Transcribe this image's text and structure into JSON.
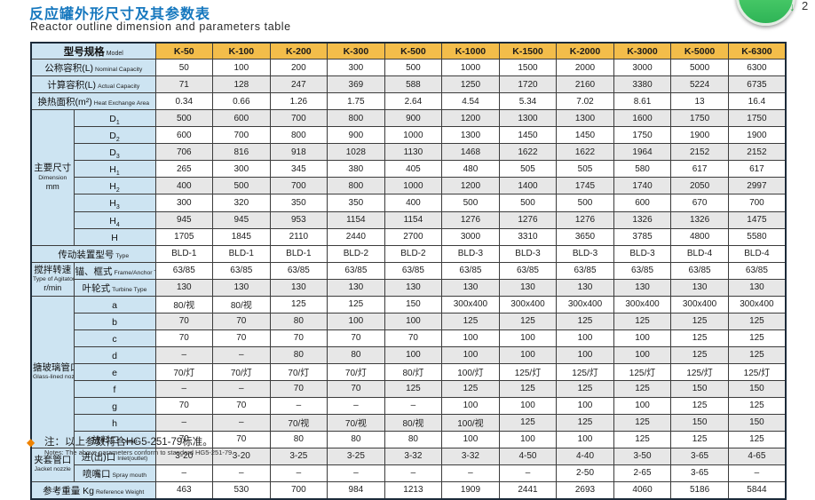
{
  "page": {
    "title_zh": "反应罐外形尺寸及其参数表",
    "title_en": "Reactor outline dimension and parameters table"
  },
  "scroll_widget": {
    "arrow": "↓",
    "count": "2"
  },
  "note": {
    "diamond": "◆",
    "zh": "注：以上参数符合HG5-251-79标准。",
    "en": "Notes: The above parameters conform to standard HG5-251-79."
  },
  "colors": {
    "title_blue": "#1577be",
    "header_orange": "#f3bd4a",
    "label_blue": "#cde4f2",
    "stripe_gray": "#e7e7e7",
    "note_diamond_orange": "#ef8200",
    "button_green": "#2eb456"
  },
  "table": {
    "header": {
      "zh": "型号规格",
      "en": "Model"
    },
    "models": [
      "K-50",
      "K-100",
      "K-200",
      "K-300",
      "K-500",
      "K-1000",
      "K-1500",
      "K-2000",
      "K-3000",
      "K-5000",
      "K-6300"
    ],
    "sections": [
      {
        "id": "nominal-capacity",
        "label": {
          "zh": "公称容积(L)",
          "en": "Nominal Capacity"
        },
        "values": [
          "50",
          "100",
          "200",
          "300",
          "500",
          "1000",
          "1500",
          "2000",
          "3000",
          "5000",
          "6300"
        ]
      },
      {
        "id": "actual-capacity",
        "label": {
          "zh": "计算容积(L)",
          "en": "Actual Capacity"
        },
        "values": [
          "71",
          "128",
          "247",
          "369",
          "588",
          "1250",
          "1720",
          "2160",
          "3380",
          "5224",
          "6735"
        ]
      },
      {
        "id": "heat-exchange-area",
        "label": {
          "zh": "换热面积(m²)",
          "en": "Heat Exchange Area"
        },
        "values": [
          "0.34",
          "0.66",
          "1.26",
          "1.75",
          "2.64",
          "4.54",
          "5.34",
          "7.02",
          "8.61",
          "13",
          "16.4"
        ]
      },
      {
        "id": "dimension",
        "group": {
          "zh": "主要尺寸",
          "en": "Dimension",
          "unit": "mm"
        },
        "rows": [
          {
            "id": "d1",
            "label": {
              "zh": "D",
              "sub": "1"
            },
            "values": [
              "500",
              "600",
              "700",
              "800",
              "900",
              "1200",
              "1300",
              "1300",
              "1600",
              "1750",
              "1750"
            ]
          },
          {
            "id": "d2",
            "label": {
              "zh": "D",
              "sub": "2"
            },
            "values": [
              "600",
              "700",
              "800",
              "900",
              "1000",
              "1300",
              "1450",
              "1450",
              "1750",
              "1900",
              "1900"
            ]
          },
          {
            "id": "d3",
            "label": {
              "zh": "D",
              "sub": "3"
            },
            "values": [
              "706",
              "816",
              "918",
              "1028",
              "1130",
              "1468",
              "1622",
              "1622",
              "1964",
              "2152",
              "2152"
            ]
          },
          {
            "id": "h1",
            "label": {
              "zh": "H",
              "sub": "1"
            },
            "values": [
              "265",
              "300",
              "345",
              "380",
              "405",
              "480",
              "505",
              "505",
              "580",
              "617",
              "617"
            ]
          },
          {
            "id": "h2",
            "label": {
              "zh": "H",
              "sub": "2"
            },
            "values": [
              "400",
              "500",
              "700",
              "800",
              "1000",
              "1200",
              "1400",
              "1745",
              "1740",
              "2050",
              "2997"
            ]
          },
          {
            "id": "h3",
            "label": {
              "zh": "H",
              "sub": "3"
            },
            "values": [
              "300",
              "320",
              "350",
              "350",
              "400",
              "500",
              "500",
              "500",
              "600",
              "670",
              "700"
            ]
          },
          {
            "id": "h4",
            "label": {
              "zh": "H",
              "sub": "4"
            },
            "values": [
              "945",
              "945",
              "953",
              "1154",
              "1154",
              "1276",
              "1276",
              "1276",
              "1326",
              "1326",
              "1475"
            ]
          },
          {
            "id": "h",
            "label": {
              "zh": "H"
            },
            "values": [
              "1705",
              "1845",
              "2110",
              "2440",
              "2700",
              "3000",
              "3310",
              "3650",
              "3785",
              "4800",
              "5580"
            ]
          }
        ]
      },
      {
        "id": "drive-type",
        "label": {
          "zh": "传动装置型号",
          "en": "Type"
        },
        "values": [
          "BLD-1",
          "BLD-1",
          "BLD-1",
          "BLD-2",
          "BLD-2",
          "BLD-3",
          "BLD-3",
          "BLD-3",
          "BLD-3",
          "BLD-4",
          "BLD-4"
        ]
      },
      {
        "id": "agitator-speed",
        "group": {
          "zh": "搅拌转速",
          "en": "Type of Agitators",
          "unit": "r/min"
        },
        "rows": [
          {
            "id": "frame-anchor",
            "label": {
              "zh": "锚、框式",
              "en": "Frame/Anchor Type"
            },
            "values": [
              "63/85",
              "63/85",
              "63/85",
              "63/85",
              "63/85",
              "63/85",
              "63/85",
              "63/85",
              "63/85",
              "63/85",
              "63/85"
            ]
          },
          {
            "id": "turbine",
            "label": {
              "zh": "叶轮式",
              "en": "Turbine Type"
            },
            "values": [
              "130",
              "130",
              "130",
              "130",
              "130",
              "130",
              "130",
              "130",
              "130",
              "130",
              "130"
            ]
          }
        ]
      },
      {
        "id": "glass-lined-nozzle",
        "group": {
          "zh": "搪玻璃管口",
          "en": "Glass-lined nozzle"
        },
        "rows": [
          {
            "id": "a",
            "label": {
              "zh": "a"
            },
            "values": [
              "80/视",
              "80/视",
              "125",
              "125",
              "150",
              "300x400",
              "300x400",
              "300x400",
              "300x400",
              "300x400",
              "300x400"
            ]
          },
          {
            "id": "b",
            "label": {
              "zh": "b"
            },
            "values": [
              "70",
              "70",
              "80",
              "100",
              "100",
              "125",
              "125",
              "125",
              "125",
              "125",
              "125"
            ]
          },
          {
            "id": "c",
            "label": {
              "zh": "c"
            },
            "values": [
              "70",
              "70",
              "70",
              "70",
              "70",
              "100",
              "100",
              "100",
              "100",
              "125",
              "125"
            ]
          },
          {
            "id": "d",
            "label": {
              "zh": "d"
            },
            "values": [
              "–",
              "–",
              "80",
              "80",
              "100",
              "100",
              "100",
              "100",
              "100",
              "125",
              "125"
            ]
          },
          {
            "id": "e",
            "label": {
              "zh": "e"
            },
            "values": [
              "70/灯",
              "70/灯",
              "70/灯",
              "70/灯",
              "80/灯",
              "100/灯",
              "125/灯",
              "125/灯",
              "125/灯",
              "125/灯",
              "125/灯"
            ]
          },
          {
            "id": "f",
            "label": {
              "zh": "f"
            },
            "values": [
              "–",
              "–",
              "70",
              "70",
              "125",
              "125",
              "125",
              "125",
              "125",
              "150",
              "150"
            ]
          },
          {
            "id": "g",
            "label": {
              "zh": "g"
            },
            "values": [
              "70",
              "70",
              "–",
              "–",
              "–",
              "100",
              "100",
              "100",
              "100",
              "125",
              "125"
            ]
          },
          {
            "id": "h-nozzle",
            "label": {
              "zh": "h"
            },
            "values": [
              "–",
              "–",
              "70/视",
              "70/视",
              "80/视",
              "100/视",
              "125",
              "125",
              "125",
              "150",
              "150"
            ]
          },
          {
            "id": "outlet",
            "label": {
              "zh": "放料口",
              "en": "Outlet"
            },
            "values": [
              "70",
              "70",
              "80",
              "80",
              "80",
              "100",
              "100",
              "100",
              "125",
              "125",
              "125"
            ]
          }
        ]
      },
      {
        "id": "jacket-nozzle",
        "group": {
          "zh": "夹套管口",
          "en": "Jacket nozzle"
        },
        "rows": [
          {
            "id": "inlet-outlet",
            "label": {
              "zh": "进(出)口",
              "en": "Inlet(outlet)"
            },
            "values": [
              "3-20",
              "3-20",
              "3-25",
              "3-25",
              "3-32",
              "3-32",
              "4-50",
              "4-40",
              "3-50",
              "3-65",
              "4-65"
            ]
          },
          {
            "id": "spray-mouth",
            "label": {
              "zh": "喷嘴口",
              "en": "Spray mouth"
            },
            "values": [
              "–",
              "–",
              "–",
              "–",
              "–",
              "–",
              "–",
              "2-50",
              "2-65",
              "3-65",
              "–"
            ]
          }
        ]
      },
      {
        "id": "reference-weight",
        "label": {
          "zh": "参考重量 Kg",
          "en": "Reference Weight"
        },
        "values": [
          "463",
          "530",
          "700",
          "984",
          "1213",
          "1909",
          "2441",
          "2693",
          "4060",
          "5186",
          "5844"
        ]
      }
    ]
  }
}
